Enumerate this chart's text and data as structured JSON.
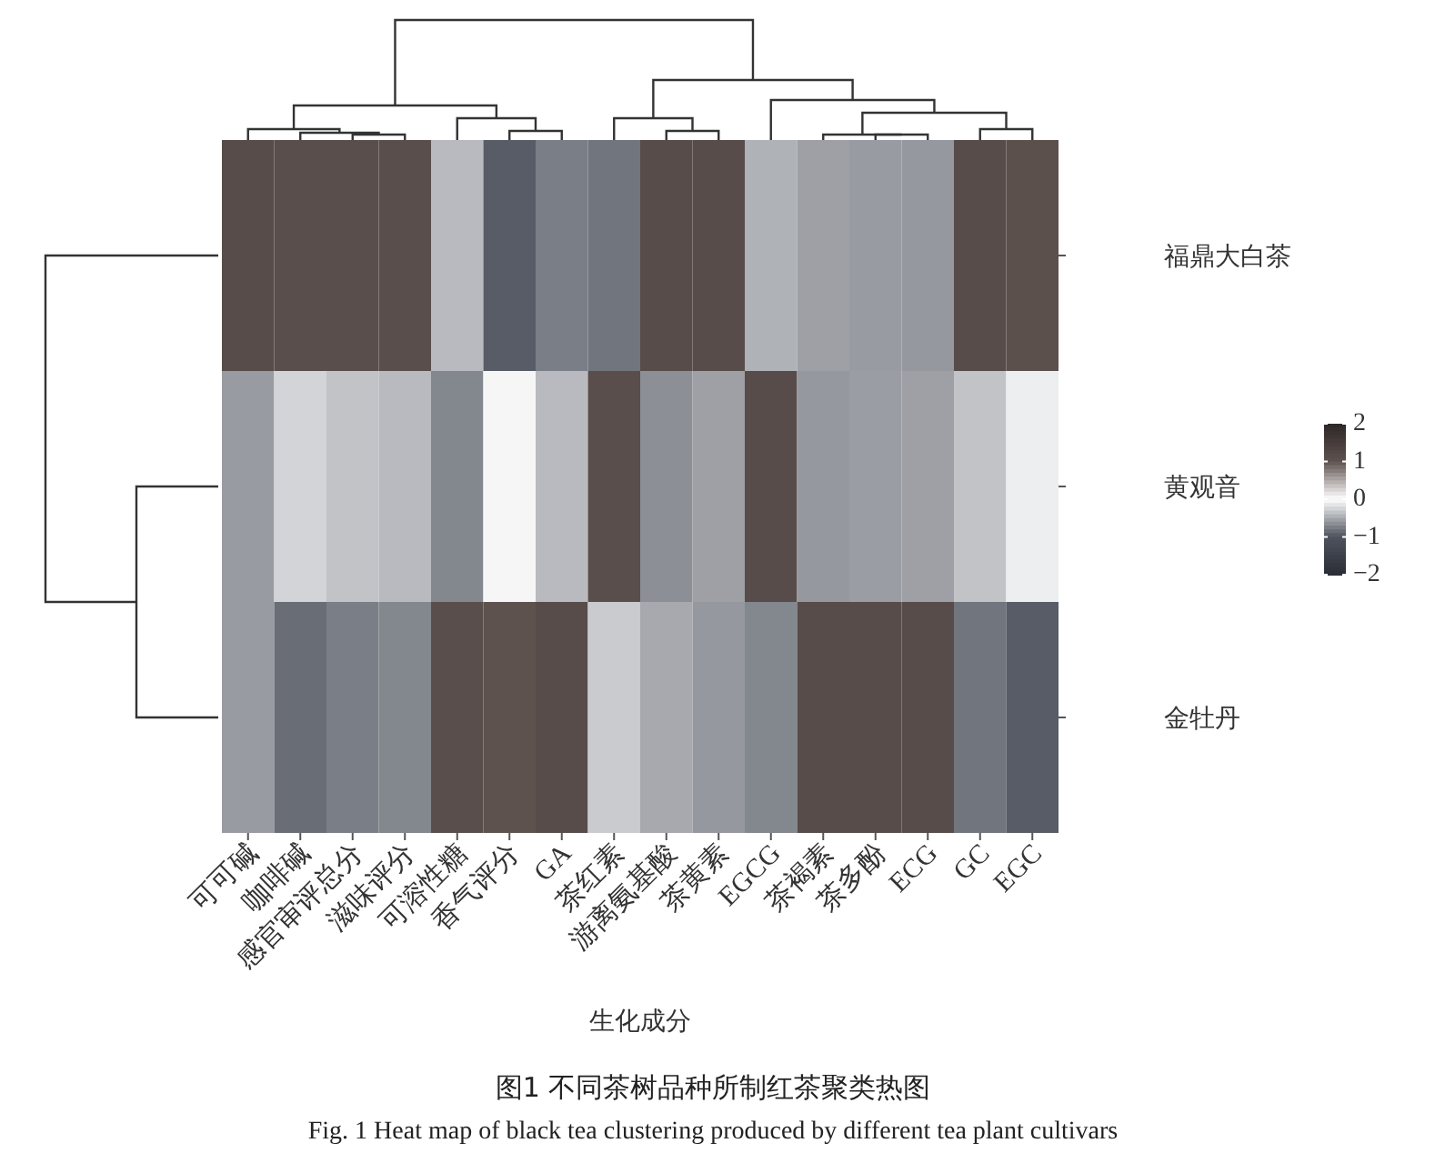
{
  "chart_data": {
    "type": "heatmap",
    "title": "图1 不同茶树品种所制红茶聚类热图",
    "subtitle": "Fig. 1 Heat map of black tea clustering produced by different tea plant cultivars",
    "xlabel": "生化成分",
    "categories": [
      "可可碱",
      "咖啡碱",
      "感官审评总分",
      "滋味评分",
      "可溶性糖",
      "香气评分",
      "GA",
      "茶红素",
      "游离氨基酸",
      "茶黄素",
      "EGCG",
      "茶褐素",
      "茶多酚",
      "ECG",
      "GC",
      "EGC"
    ],
    "y_categories": [
      "福鼎大白茶",
      "黄观音",
      "金牡丹"
    ],
    "cells": [
      [
        1.15,
        1.1,
        1.1,
        1.1,
        -0.4,
        -0.95,
        -0.75,
        -0.8,
        1.15,
        1.15,
        -0.45,
        -0.55,
        -0.58,
        -0.6,
        1.15,
        1.05
      ],
      [
        -0.58,
        -0.25,
        -0.35,
        -0.4,
        -0.7,
        -0.05,
        -0.4,
        1.1,
        -0.65,
        -0.55,
        1.15,
        -0.6,
        -0.57,
        -0.55,
        -0.35,
        -0.1
      ],
      [
        -0.58,
        -0.85,
        -0.75,
        -0.7,
        1.1,
        1.0,
        1.15,
        -0.3,
        -0.5,
        -0.6,
        -0.7,
        1.15,
        1.15,
        1.15,
        -0.8,
        -0.95
      ]
    ],
    "clim": [
      -2,
      2
    ],
    "cticks": [
      {
        "value": -2,
        "label": "−2"
      },
      {
        "value": -1,
        "label": "−1"
      },
      0,
      1,
      2
    ]
  }
}
